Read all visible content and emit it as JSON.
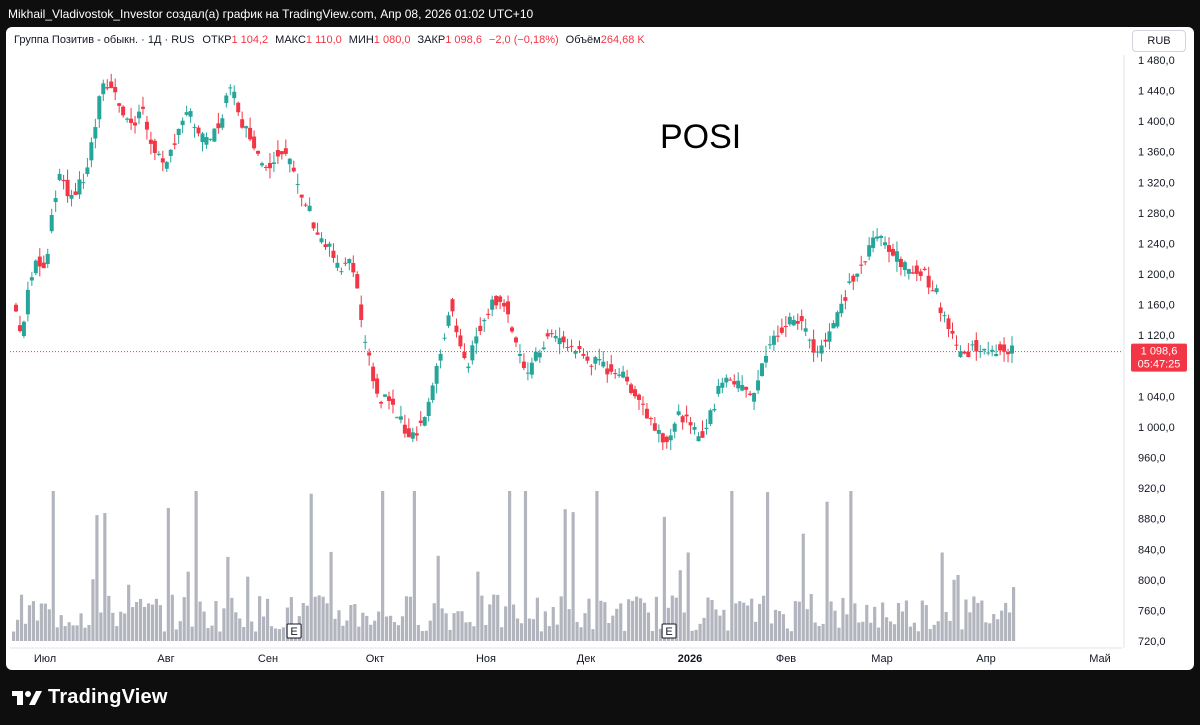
{
  "header": {
    "attribution": "Mikhail_Vladivostok_Investor создал(а) график на TradingView.com, Апр 08, 2026 01:02 UTC+10"
  },
  "legend": {
    "instrument": "Группа Позитив - обыкн. · 1Д · RUS",
    "open_label": "ОТКР",
    "open_value": "1 104,2",
    "high_label": "МАКС",
    "high_value": "1 110,0",
    "low_label": "МИН",
    "low_value": "1 080,0",
    "close_label": "ЗАКР",
    "close_value": "1 098,6",
    "change_value": "−2,0 (−0,18%)",
    "volume_label": "Объём",
    "volume_value": "264,68 K"
  },
  "currency_button": "RUB",
  "ticker_annotation": "POSI",
  "price_badge": {
    "price": "1 098,6",
    "countdown": "05:47:25"
  },
  "earnings_markers": [
    "E",
    "E"
  ],
  "footer": {
    "brand": "TradingView"
  },
  "colors": {
    "up": "#26a69a",
    "down": "#f23645",
    "volume": "#b2b5be",
    "background": "#ffffff",
    "frame": "#0e0e0e"
  },
  "chart_data": {
    "type": "candlestick",
    "y_ticks": [
      "1 480,0",
      "1 440,0",
      "1 400,0",
      "1 360,0",
      "1 320,0",
      "1 280,0",
      "1 240,0",
      "1 200,0",
      "1 160,0",
      "1 120,0",
      "1 080,0",
      "1 040,0",
      "1 000,0",
      "960,0",
      "920,0",
      "880,0",
      "840,0",
      "800,0",
      "760,0",
      "720,0"
    ],
    "ylim": [
      720,
      1480
    ],
    "x_ticks": [
      "Июл",
      "Авг",
      "Сен",
      "Окт",
      "Ноя",
      "Дек",
      "2026",
      "Фев",
      "Мар",
      "Апр",
      "Май"
    ],
    "anchors": [
      [
        0,
        1160
      ],
      [
        4,
        1120
      ],
      [
        8,
        1190
      ],
      [
        12,
        1220
      ],
      [
        16,
        1210
      ],
      [
        20,
        1300
      ],
      [
        24,
        1330
      ],
      [
        28,
        1300
      ],
      [
        32,
        1310
      ],
      [
        36,
        1330
      ],
      [
        40,
        1380
      ],
      [
        44,
        1440
      ],
      [
        48,
        1450
      ],
      [
        52,
        1430
      ],
      [
        56,
        1410
      ],
      [
        60,
        1390
      ],
      [
        64,
        1420
      ],
      [
        68,
        1380
      ],
      [
        72,
        1360
      ],
      [
        76,
        1330
      ],
      [
        80,
        1370
      ],
      [
        84,
        1400
      ],
      [
        88,
        1410
      ],
      [
        92,
        1390
      ],
      [
        96,
        1370
      ],
      [
        100,
        1380
      ],
      [
        104,
        1400
      ],
      [
        108,
        1440
      ],
      [
        112,
        1430
      ],
      [
        116,
        1390
      ],
      [
        120,
        1380
      ],
      [
        124,
        1350
      ],
      [
        128,
        1340
      ],
      [
        132,
        1360
      ],
      [
        136,
        1365
      ],
      [
        140,
        1340
      ],
      [
        144,
        1300
      ],
      [
        148,
        1290
      ],
      [
        152,
        1260
      ],
      [
        156,
        1240
      ],
      [
        160,
        1230
      ],
      [
        164,
        1200
      ],
      [
        168,
        1215
      ],
      [
        172,
        1200
      ],
      [
        176,
        1110
      ],
      [
        180,
        1080
      ],
      [
        184,
        1030
      ],
      [
        188,
        1040
      ],
      [
        192,
        1020
      ],
      [
        196,
        1000
      ],
      [
        200,
        990
      ],
      [
        204,
        1000
      ],
      [
        208,
        1020
      ],
      [
        212,
        1060
      ],
      [
        216,
        1110
      ],
      [
        220,
        1160
      ],
      [
        224,
        1120
      ],
      [
        228,
        1080
      ],
      [
        232,
        1110
      ],
      [
        236,
        1140
      ],
      [
        240,
        1160
      ],
      [
        244,
        1170
      ],
      [
        248,
        1160
      ],
      [
        252,
        1110
      ],
      [
        256,
        1080
      ],
      [
        260,
        1075
      ],
      [
        264,
        1095
      ],
      [
        268,
        1115
      ],
      [
        272,
        1120
      ],
      [
        276,
        1110
      ],
      [
        280,
        1105
      ],
      [
        284,
        1100
      ],
      [
        288,
        1090
      ],
      [
        292,
        1085
      ],
      [
        296,
        1080
      ],
      [
        300,
        1075
      ],
      [
        304,
        1075
      ],
      [
        308,
        1060
      ],
      [
        312,
        1050
      ],
      [
        316,
        1035
      ],
      [
        320,
        1010
      ],
      [
        324,
        1000
      ],
      [
        328,
        985
      ],
      [
        332,
        995
      ],
      [
        336,
        1020
      ],
      [
        340,
        1000
      ],
      [
        344,
        990
      ],
      [
        348,
        995
      ],
      [
        352,
        1020
      ],
      [
        356,
        1060
      ],
      [
        360,
        1070
      ],
      [
        364,
        1050
      ],
      [
        368,
        1060
      ],
      [
        372,
        1040
      ],
      [
        376,
        1070
      ],
      [
        380,
        1100
      ],
      [
        384,
        1120
      ],
      [
        388,
        1130
      ],
      [
        392,
        1140
      ],
      [
        396,
        1140
      ],
      [
        400,
        1120
      ],
      [
        404,
        1100
      ],
      [
        408,
        1110
      ],
      [
        412,
        1130
      ],
      [
        416,
        1150
      ],
      [
        420,
        1180
      ],
      [
        424,
        1200
      ],
      [
        428,
        1210
      ],
      [
        432,
        1240
      ],
      [
        436,
        1250
      ],
      [
        440,
        1240
      ],
      [
        444,
        1225
      ],
      [
        448,
        1210
      ],
      [
        452,
        1200
      ],
      [
        456,
        1210
      ],
      [
        460,
        1195
      ],
      [
        464,
        1180
      ],
      [
        468,
        1150
      ],
      [
        472,
        1130
      ],
      [
        476,
        1100
      ],
      [
        480,
        1090
      ],
      [
        484,
        1110
      ],
      [
        488,
        1100
      ],
      [
        492,
        1090
      ],
      [
        496,
        1105
      ],
      [
        500,
        1100
      ],
      [
        504,
        1098.6
      ]
    ],
    "last_index": 504,
    "last_price": 1098.6,
    "volume_range_k": [
      0,
      2400
    ],
    "earnings_bar_index": [
      121,
      310
    ]
  }
}
